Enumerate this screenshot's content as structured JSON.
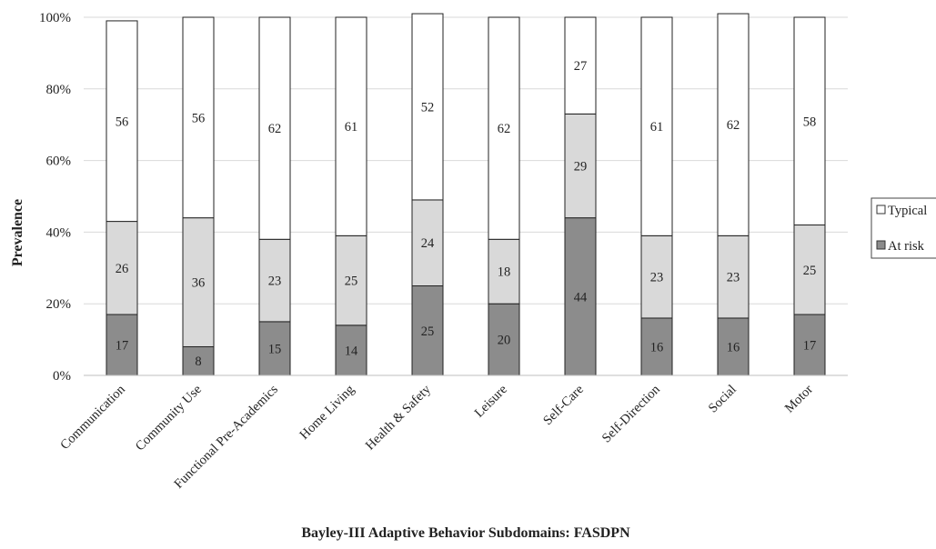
{
  "chart_data": {
    "type": "bar",
    "stacked": true,
    "percent_stacked": true,
    "categories": [
      "Communication",
      "Community Use",
      "Functional Pre-Academics",
      "Home Living",
      "Health & Safety",
      "Leisure",
      "Self-Care",
      "Self-Direction",
      "Social",
      "Motor"
    ],
    "series": [
      {
        "name": "At risk",
        "color": "#8c8c8c",
        "values": [
          17,
          8,
          15,
          14,
          25,
          20,
          44,
          16,
          16,
          17
        ]
      },
      {
        "name": "",
        "color": "#d9d9d9",
        "values": [
          26,
          36,
          23,
          25,
          24,
          18,
          29,
          23,
          23,
          25
        ]
      },
      {
        "name": "Typical",
        "color": "#ffffff",
        "values": [
          56,
          56,
          62,
          61,
          52,
          62,
          27,
          61,
          62,
          58
        ]
      }
    ],
    "yticks": [
      "0%",
      "20%",
      "40%",
      "60%",
      "80%",
      "100%"
    ],
    "ylim": [
      0,
      100
    ],
    "xlabel": "Bayley-III Adaptive Behavior Subdomains: FASDPN",
    "ylabel": "Prevalence",
    "grid": true,
    "legend_position": "right",
    "legend_entries": [
      "Typical",
      "At risk"
    ]
  }
}
